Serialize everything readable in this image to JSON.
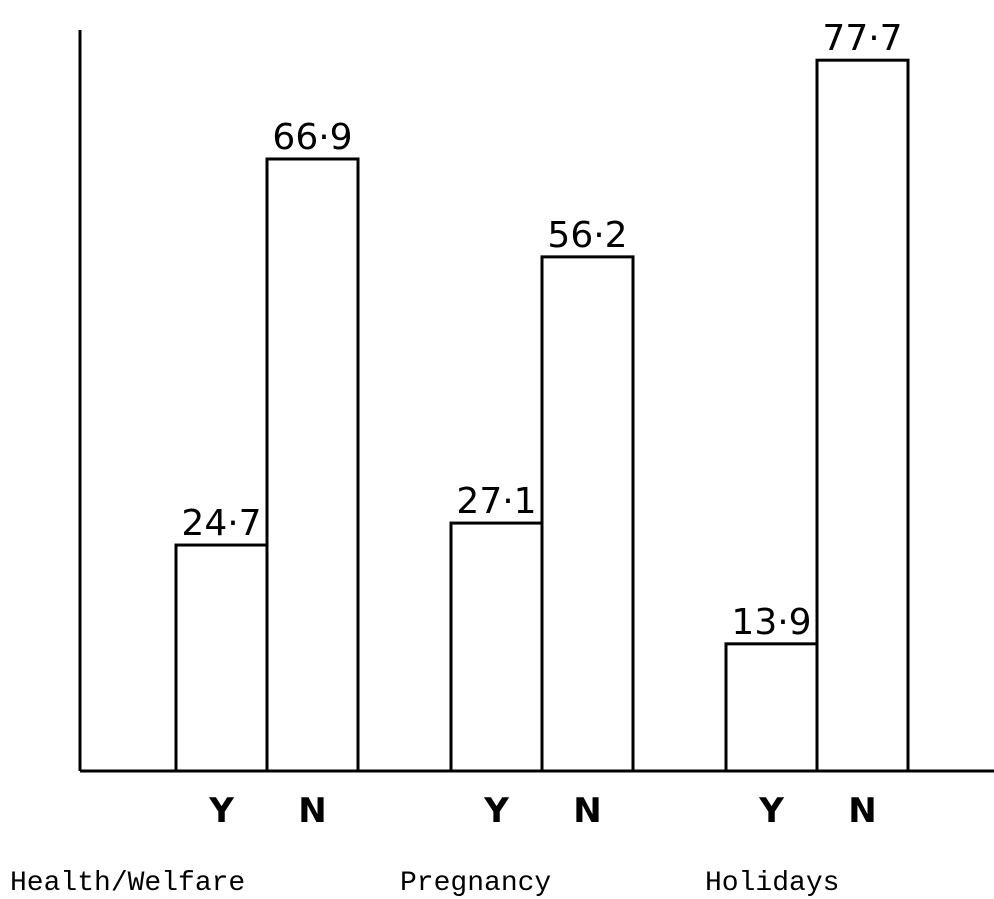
{
  "chart_data": {
    "type": "bar",
    "categories": [
      "Health/Welfare",
      "Pregnancy",
      "Holidays"
    ],
    "series": [
      {
        "name": "Y",
        "color": "#ffffff",
        "values": [
          24.7,
          27.1,
          13.9
        ],
        "value_labels": [
          "24·7",
          "27·1",
          "13·9"
        ]
      },
      {
        "name": "N",
        "color": "#ffffff",
        "values": [
          66.9,
          56.2,
          77.7
        ],
        "value_labels": [
          "66·9",
          "56·2",
          "77·7"
        ]
      }
    ],
    "ylim": [
      0,
      81
    ]
  }
}
